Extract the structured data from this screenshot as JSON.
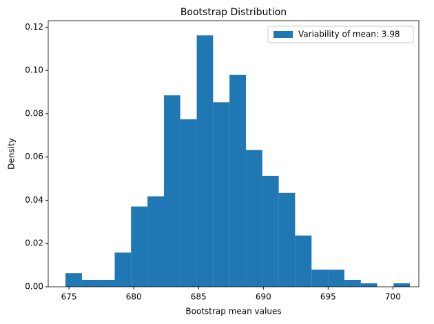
{
  "chart_data": {
    "type": "histogram",
    "title": "Bootstrap Distribution",
    "x_label": "Bootstrap mean values",
    "y_label": "Density",
    "bins": [
      674.73,
      676.0,
      677.26,
      678.53,
      679.79,
      681.06,
      682.33,
      683.59,
      684.86,
      686.12,
      687.39,
      688.66,
      689.92,
      691.19,
      692.45,
      693.72,
      694.99,
      696.25,
      697.52,
      698.78,
      700.05,
      701.31
    ],
    "series": [
      {
        "name": "Variability of mean: 3.98",
        "color": "#1f77b4",
        "values": [
          0.0063,
          0.0032,
          0.0032,
          0.0158,
          0.0371,
          0.0418,
          0.0885,
          0.0774,
          0.1162,
          0.0853,
          0.0979,
          0.0632,
          0.0513,
          0.0434,
          0.0237,
          0.0079,
          0.0079,
          0.0032,
          0.0016,
          0,
          0.0016
        ]
      }
    ],
    "xlim": [
      673.4,
      702.0
    ],
    "ylim": [
      0,
      0.123
    ],
    "xticks": [
      675,
      680,
      685,
      690,
      695,
      700
    ],
    "yticks": [
      {
        "value": 0,
        "label": "0.00"
      },
      {
        "value": 0.02,
        "label": "0.02"
      },
      {
        "value": 0.04,
        "label": "0.04"
      },
      {
        "value": 0.06,
        "label": "0.06"
      },
      {
        "value": 0.08,
        "label": "0.08"
      },
      {
        "value": 0.1,
        "label": "0.10"
      },
      {
        "value": 0.12,
        "label": "0.12"
      }
    ],
    "legend": "upper right"
  }
}
